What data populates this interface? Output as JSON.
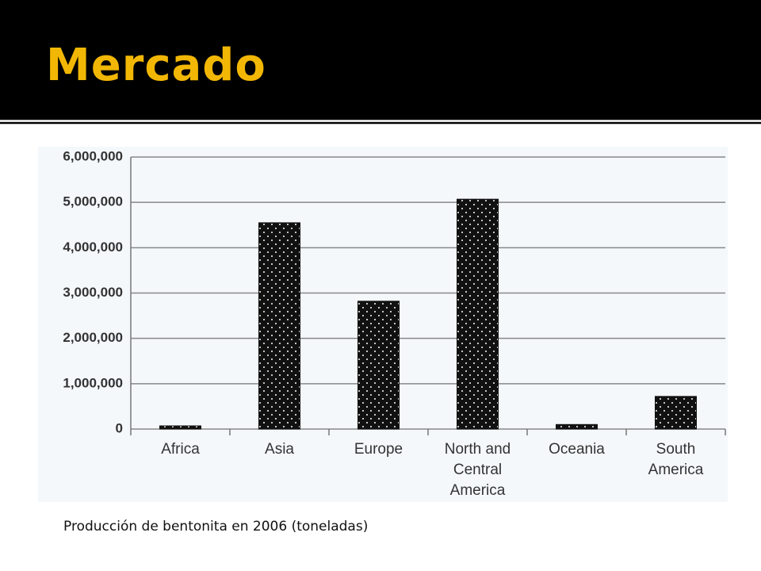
{
  "header": {
    "title": "Mercado"
  },
  "chart_data": {
    "type": "bar",
    "categories": [
      "Africa",
      "Asia",
      "Europe",
      "North and Central America",
      "Oceania",
      "South America"
    ],
    "values": [
      70000,
      4550000,
      2820000,
      5070000,
      100000,
      720000
    ],
    "color": "#111111",
    "ylim": [
      0,
      6000000
    ],
    "yticks": [
      0,
      {
        "value": 1000000,
        "label": "1,000,000"
      },
      {
        "value": 2000000,
        "label": "2,000,000"
      },
      {
        "value": 3000000,
        "label": "3,000,000"
      },
      {
        "value": 4000000,
        "label": "4,000,000"
      },
      {
        "value": 5000000,
        "label": "5,000,000"
      },
      {
        "value": 6000000,
        "label": "6,000,000"
      }
    ],
    "grid": true
  },
  "caption": "Producción de bentonita en 2006 (toneladas)"
}
